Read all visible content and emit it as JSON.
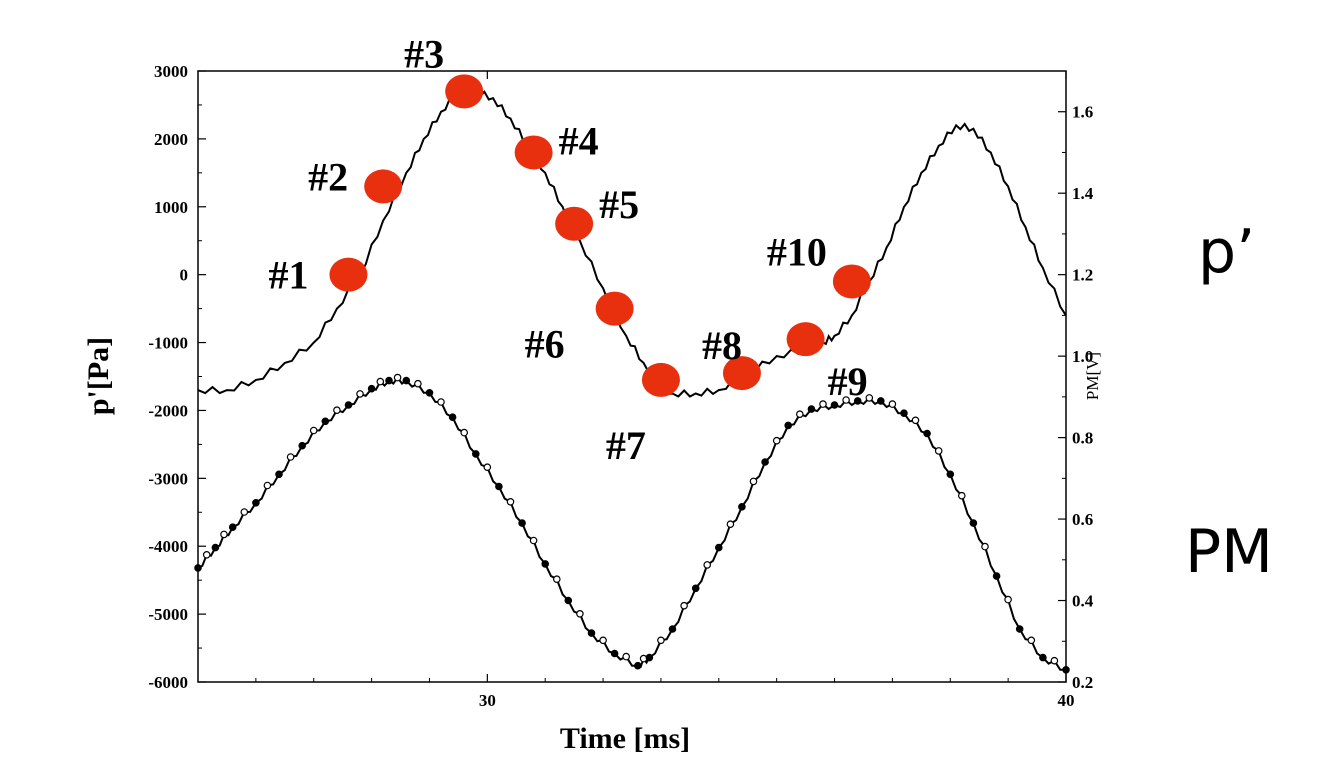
{
  "chart_data": {
    "type": "line",
    "xlabel": "Time [ms]",
    "ylabel": "p'[Pa]",
    "y2label": "PM[V]",
    "xlim": [
      25,
      40
    ],
    "ylim": [
      -6000,
      3000
    ],
    "y2lim": [
      0.2,
      1.7
    ],
    "x_ticks": [
      "30",
      "40"
    ],
    "y_ticks": [
      "3000",
      "2000",
      "1000",
      "0",
      "-1000",
      "-2000",
      "-3000",
      "-4000",
      "-5000",
      "-6000"
    ],
    "y2_ticks": [
      "1.6",
      "1.4",
      "1.2",
      "1.0",
      "0.8",
      "0.6",
      "0.4",
      "0.2"
    ],
    "grid": false,
    "side_labels": {
      "p_prime": "p’",
      "pm": "PM"
    },
    "series": [
      {
        "name": "p’",
        "axis": "left",
        "style": "line",
        "x": [
          25,
          25.5,
          26,
          26.5,
          27,
          27.4,
          27.8,
          28.2,
          28.6,
          28.9,
          29.2,
          29.5,
          29.8,
          30.1,
          30.4,
          30.7,
          31.0,
          31.3,
          31.6,
          32.0,
          32.4,
          32.7,
          33.0,
          33.2,
          33.6,
          34.0,
          34.5,
          35.0,
          35.5,
          35.8,
          36.0,
          36.3,
          36.6,
          36.9,
          37.2,
          37.5,
          37.8,
          38.1,
          38.4,
          38.7,
          39.0,
          39.3,
          39.6,
          40.0
        ],
        "y": [
          -1700,
          -1700,
          -1550,
          -1300,
          -1000,
          -500,
          0,
          800,
          1500,
          2000,
          2400,
          2700,
          2700,
          2600,
          2300,
          1900,
          1500,
          1000,
          500,
          -200,
          -900,
          -1300,
          -1600,
          -1750,
          -1750,
          -1700,
          -1450,
          -1200,
          -1100,
          -1000,
          -900,
          -600,
          -100,
          400,
          1000,
          1500,
          1900,
          2200,
          2150,
          1800,
          1300,
          700,
          100,
          -600
        ]
      },
      {
        "name": "PM",
        "axis": "right",
        "style": "line-markers",
        "x": [
          25,
          25.3,
          25.6,
          26.0,
          26.4,
          26.8,
          27.2,
          27.6,
          28.0,
          28.3,
          28.6,
          29.0,
          29.4,
          29.8,
          30.2,
          30.6,
          31.0,
          31.4,
          31.8,
          32.2,
          32.6,
          32.8,
          33.2,
          33.6,
          34.0,
          34.4,
          34.8,
          35.2,
          35.6,
          36.0,
          36.4,
          36.8,
          37.2,
          37.6,
          38.0,
          38.4,
          38.8,
          39.2,
          39.6,
          40.0
        ],
        "y": [
          0.48,
          0.53,
          0.58,
          0.64,
          0.71,
          0.78,
          0.84,
          0.88,
          0.92,
          0.94,
          0.94,
          0.91,
          0.85,
          0.76,
          0.68,
          0.59,
          0.49,
          0.4,
          0.32,
          0.27,
          0.24,
          0.26,
          0.33,
          0.43,
          0.53,
          0.63,
          0.74,
          0.83,
          0.87,
          0.88,
          0.89,
          0.89,
          0.86,
          0.81,
          0.71,
          0.59,
          0.46,
          0.33,
          0.26,
          0.23
        ]
      }
    ],
    "points": [
      {
        "label": "#1",
        "x": 27.6,
        "y": 0
      },
      {
        "label": "#2",
        "x": 28.2,
        "y": 1300
      },
      {
        "label": "#3",
        "x": 29.6,
        "y": 2700
      },
      {
        "label": "#4",
        "x": 30.8,
        "y": 1800
      },
      {
        "label": "#5",
        "x": 31.5,
        "y": 750
      },
      {
        "label": "#6",
        "x": 32.2,
        "y": -500
      },
      {
        "label": "#7",
        "x": 33.0,
        "y": -1550
      },
      {
        "label": "#8",
        "x": 34.4,
        "y": -1450
      },
      {
        "label": "#9",
        "x": 35.5,
        "y": -950
      },
      {
        "label": "#10",
        "x": 36.3,
        "y": -100
      }
    ],
    "colors": {
      "marker": "#e8300f",
      "line": "#000000"
    }
  }
}
